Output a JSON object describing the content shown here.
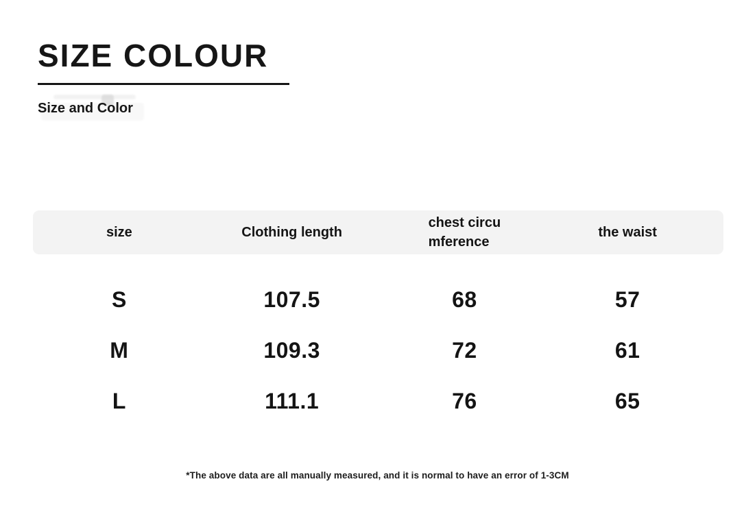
{
  "header": {
    "title": "SIZE COLOUR",
    "subtitle": "Size and Color"
  },
  "table": {
    "columns": [
      "size",
      "Clothing length",
      "chest circu\nmference",
      "the waist"
    ],
    "rows": [
      [
        "S",
        "107.5",
        "68",
        "57"
      ],
      [
        "M",
        "109.3",
        "72",
        "61"
      ],
      [
        "L",
        "111.1",
        "76",
        "65"
      ]
    ]
  },
  "footnote": "*The above data are all manually measured, and it is normal to have an error of 1-3CM",
  "colors": {
    "text": "#161616",
    "header_band": "#f3f3f3",
    "background": "#ffffff",
    "title_underline": "#161616"
  }
}
